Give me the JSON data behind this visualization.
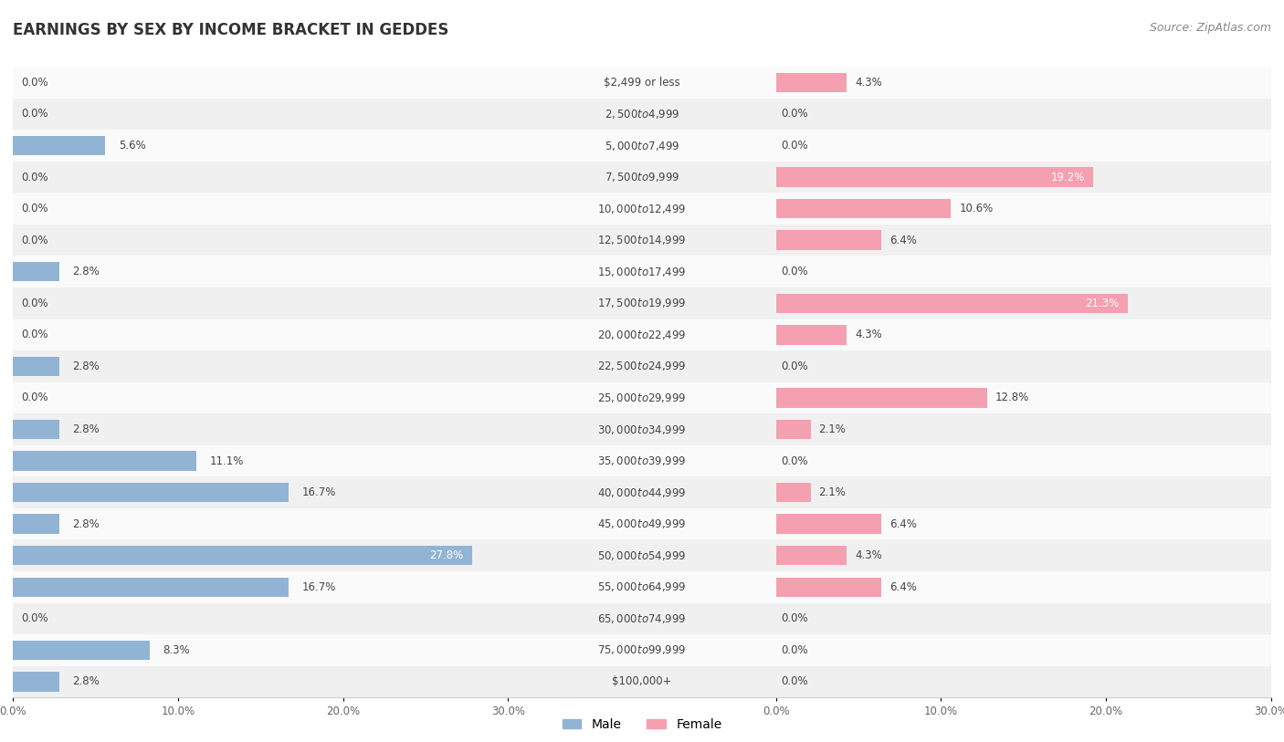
{
  "title": "EARNINGS BY SEX BY INCOME BRACKET IN GEDDES",
  "source": "Source: ZipAtlas.com",
  "categories": [
    "$2,499 or less",
    "$2,500 to $4,999",
    "$5,000 to $7,499",
    "$7,500 to $9,999",
    "$10,000 to $12,499",
    "$12,500 to $14,999",
    "$15,000 to $17,499",
    "$17,500 to $19,999",
    "$20,000 to $22,499",
    "$22,500 to $24,999",
    "$25,000 to $29,999",
    "$30,000 to $34,999",
    "$35,000 to $39,999",
    "$40,000 to $44,999",
    "$45,000 to $49,999",
    "$50,000 to $54,999",
    "$55,000 to $64,999",
    "$65,000 to $74,999",
    "$75,000 to $99,999",
    "$100,000+"
  ],
  "male": [
    0.0,
    0.0,
    5.6,
    0.0,
    0.0,
    0.0,
    2.8,
    0.0,
    0.0,
    2.8,
    0.0,
    2.8,
    11.1,
    16.7,
    2.8,
    27.8,
    16.7,
    0.0,
    8.3,
    2.8
  ],
  "female": [
    4.3,
    0.0,
    0.0,
    19.2,
    10.6,
    6.4,
    0.0,
    21.3,
    4.3,
    0.0,
    12.8,
    2.1,
    0.0,
    2.1,
    6.4,
    4.3,
    6.4,
    0.0,
    0.0,
    0.0
  ],
  "male_color": "#92b4d4",
  "female_color": "#f4a0b0",
  "label_color_dark": "#444444",
  "label_color_light": "#ffffff",
  "row_bg_even": "#f0f0f0",
  "row_bg_odd": "#fafafa",
  "axis_limit": 30.0,
  "bar_height": 0.62,
  "legend_male": "Male",
  "legend_female": "Female",
  "val_fontsize": 8.5,
  "cat_fontsize": 8.5,
  "title_fontsize": 12,
  "source_fontsize": 9
}
